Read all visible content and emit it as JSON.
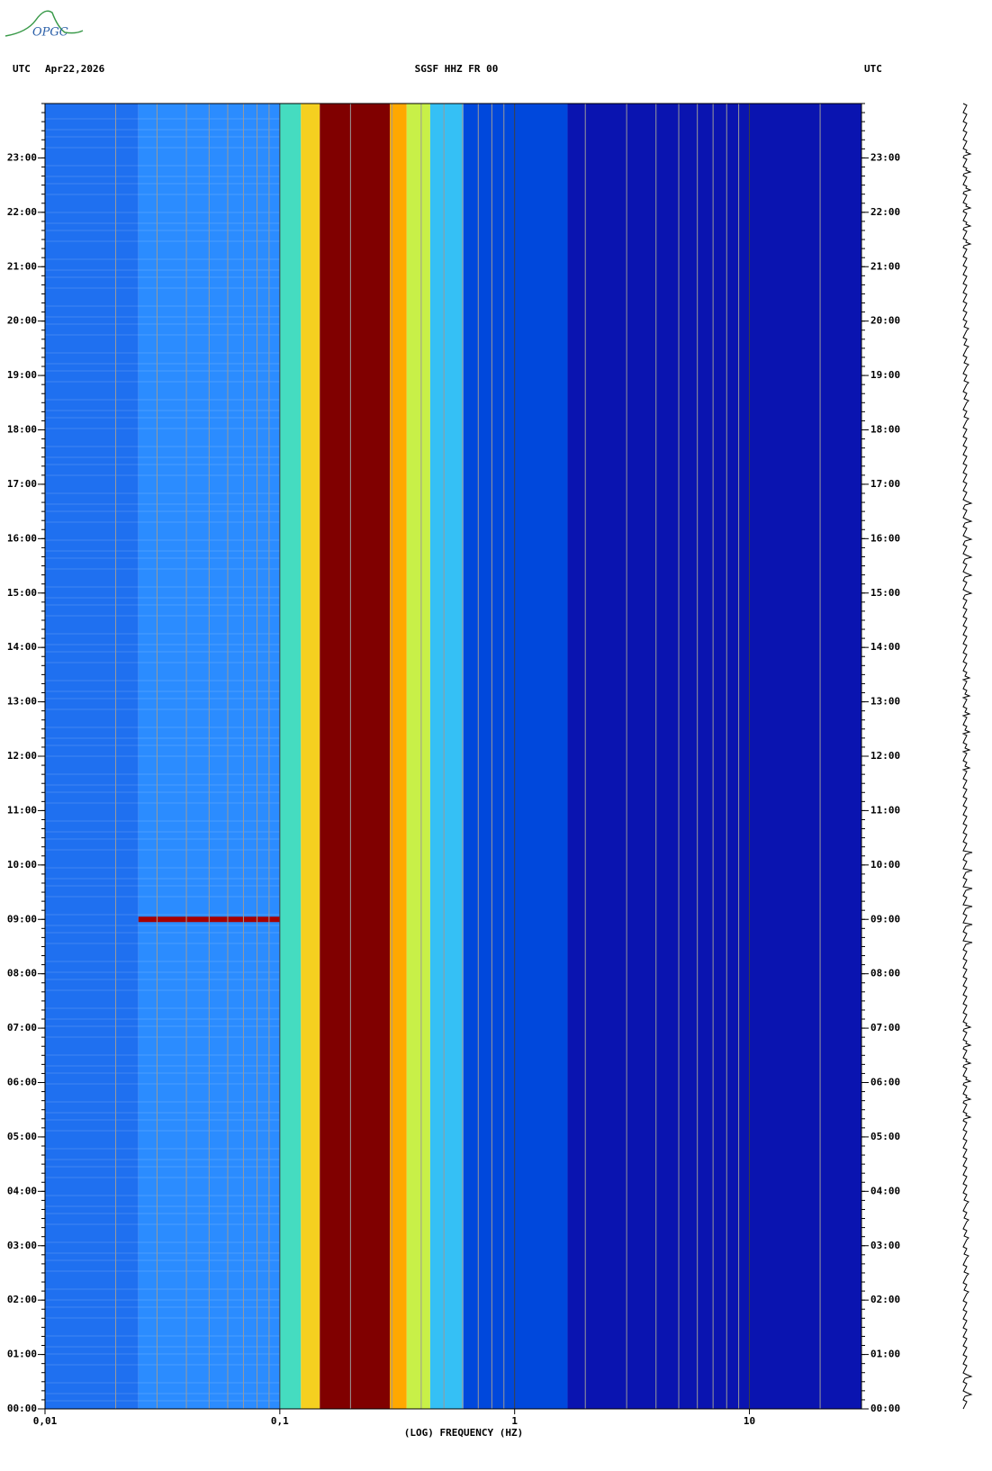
{
  "chart_data": {
    "type": "spectrogram",
    "logo": "OPGC",
    "timezone_left": "UTC",
    "date": "Apr22,2026",
    "title": "SGSF HHZ FR 00",
    "timezone_right": "UTC",
    "x_label": "(LOG) FREQUENCY (HZ)",
    "xscale": "log",
    "xlim": [
      0.01,
      30
    ],
    "xticks": [
      {
        "value": 0.01,
        "label": "0,01"
      },
      {
        "value": 0.1,
        "label": "0,1"
      },
      1,
      10
    ],
    "ylim": [
      0,
      24
    ],
    "yticks": [
      {
        "value": 0,
        "label": "00:00"
      },
      {
        "value": 1,
        "label": "01:00"
      },
      {
        "value": 2,
        "label": "02:00"
      },
      {
        "value": 3,
        "label": "03:00"
      },
      {
        "value": 4,
        "label": "04:00"
      },
      {
        "value": 5,
        "label": "05:00"
      },
      {
        "value": 6,
        "label": "06:00"
      },
      {
        "value": 7,
        "label": "07:00"
      },
      {
        "value": 8,
        "label": "08:00"
      },
      {
        "value": 9,
        "label": "09:00"
      },
      {
        "value": 10,
        "label": "10:00"
      },
      {
        "value": 11,
        "label": "11:00"
      },
      {
        "value": 12,
        "label": "12:00"
      },
      {
        "value": 13,
        "label": "13:00"
      },
      {
        "value": 14,
        "label": "14:00"
      },
      {
        "value": 15,
        "label": "15:00"
      },
      {
        "value": 16,
        "label": "16:00"
      },
      {
        "value": 17,
        "label": "17:00"
      },
      {
        "value": 18,
        "label": "18:00"
      },
      {
        "value": 19,
        "label": "19:00"
      },
      {
        "value": 20,
        "label": "20:00"
      },
      {
        "value": 21,
        "label": "21:00"
      },
      {
        "value": 22,
        "label": "22:00"
      },
      {
        "value": 23,
        "label": "23:00"
      }
    ],
    "grid": true,
    "bands": [
      {
        "from": 0.01,
        "to": 0.025,
        "color": "#1f70f0"
      },
      {
        "from": 0.025,
        "to": 0.1,
        "color": "#2b8cff"
      },
      {
        "from": 0.1,
        "to": 0.123,
        "color": "#45dcc0"
      },
      {
        "from": 0.123,
        "to": 0.148,
        "color": "#f5d020"
      },
      {
        "from": 0.148,
        "to": 0.294,
        "color": "#800000"
      },
      {
        "from": 0.294,
        "to": 0.347,
        "color": "#ffa800"
      },
      {
        "from": 0.347,
        "to": 0.437,
        "color": "#c8f048"
      },
      {
        "from": 0.437,
        "to": 0.605,
        "color": "#35c0f5"
      },
      {
        "from": 0.605,
        "to": 1.68,
        "color": "#0048dc"
      },
      {
        "from": 1.68,
        "to": 30,
        "color": "#0a14b0"
      }
    ],
    "events": [
      {
        "time": 9,
        "from": 0.025,
        "to": 0.1,
        "color": "#a80000"
      }
    ]
  }
}
